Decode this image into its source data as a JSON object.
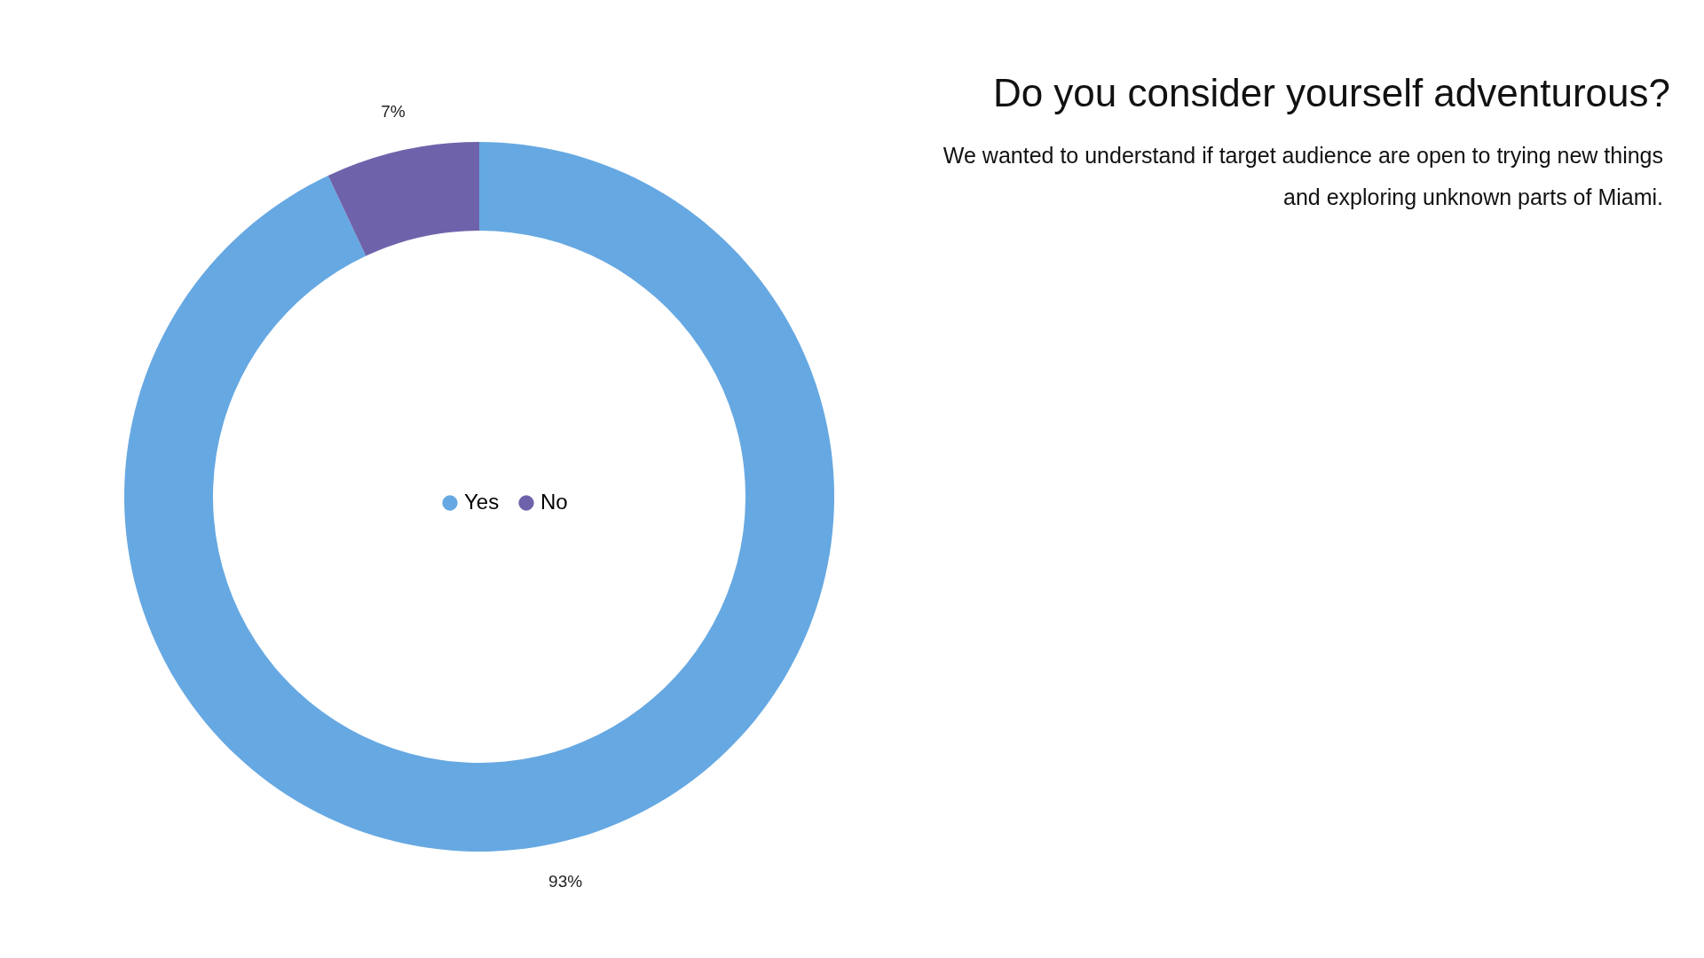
{
  "chart_data": {
    "type": "donut",
    "title": "Do you consider yourself adventurous?",
    "subtitle": "We wanted to understand if target audience are open to trying new things and exploring unknown parts of Miami.",
    "categories": [
      "Yes",
      "No"
    ],
    "values": [
      93,
      7
    ],
    "colors": [
      "#66a8e2",
      "#6e63ab"
    ],
    "value_labels": [
      "93%",
      "7%"
    ],
    "legend": "center"
  }
}
